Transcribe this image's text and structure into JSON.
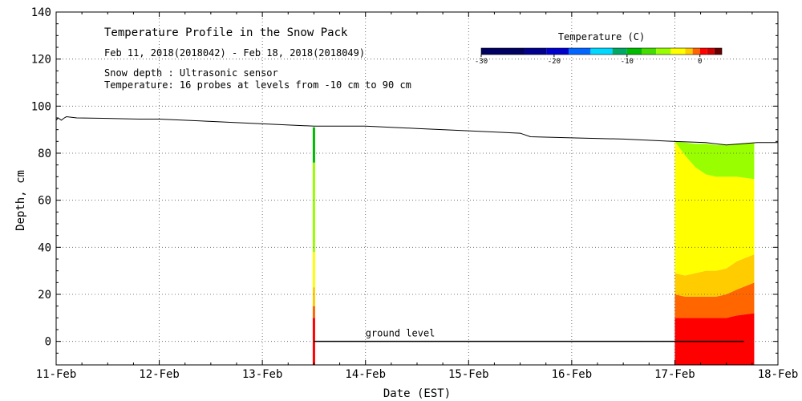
{
  "chart_data": {
    "type": "heatmap",
    "title": "Temperature Profile in the Snow Pack",
    "subtitle": "Feb 11, 2018(2018042) - Feb 18, 2018(2018049)",
    "notes": [
      "Snow depth : Ultrasonic sensor",
      "Temperature: 16 probes at levels from -10 cm to 90 cm"
    ],
    "xlabel": "Date (EST)",
    "ylabel": "Depth, cm",
    "xlim": [
      0,
      7
    ],
    "ylim": [
      -10,
      140
    ],
    "x_ticks": [
      {
        "x": 0,
        "label": "11-Feb"
      },
      {
        "x": 1,
        "label": "12-Feb"
      },
      {
        "x": 2,
        "label": "13-Feb"
      },
      {
        "x": 3,
        "label": "14-Feb"
      },
      {
        "x": 4,
        "label": "15-Feb"
      },
      {
        "x": 5,
        "label": "16-Feb"
      },
      {
        "x": 6,
        "label": "17-Feb"
      },
      {
        "x": 7,
        "label": "18-Feb"
      }
    ],
    "y_ticks": [
      0,
      20,
      40,
      60,
      80,
      100,
      120,
      140
    ],
    "grid": true,
    "colorbar": {
      "title": "Temperature (C)",
      "min": -30,
      "max": 3,
      "tick_values": [
        -30,
        -20,
        -10,
        0
      ],
      "tick_labels": [
        "-30",
        "-20",
        "-10",
        "0"
      ],
      "bands": [
        {
          "from": -30,
          "to": -24,
          "color": "#000060"
        },
        {
          "from": -24,
          "to": -21,
          "color": "#00008c"
        },
        {
          "from": -21,
          "to": -18,
          "color": "#0000cc"
        },
        {
          "from": -18,
          "to": -15,
          "color": "#0066ff"
        },
        {
          "from": -15,
          "to": -12,
          "color": "#00d8ff"
        },
        {
          "from": -12,
          "to": -10,
          "color": "#00aa66"
        },
        {
          "from": -10,
          "to": -8,
          "color": "#00bb00"
        },
        {
          "from": -8,
          "to": -6,
          "color": "#44dd00"
        },
        {
          "from": -6,
          "to": -4,
          "color": "#99ff00"
        },
        {
          "from": -4,
          "to": -2,
          "color": "#ffff00"
        },
        {
          "from": -2,
          "to": -1,
          "color": "#ffcc00"
        },
        {
          "from": -1,
          "to": 0,
          "color": "#ff6600"
        },
        {
          "from": 0,
          "to": 1,
          "color": "#ff0000"
        },
        {
          "from": 1,
          "to": 2,
          "color": "#cc0000"
        },
        {
          "from": 2,
          "to": 3,
          "color": "#660000"
        }
      ]
    },
    "snow_depth": {
      "name": "Snow depth",
      "x": [
        0,
        0.02,
        0.05,
        0.08,
        0.1,
        0.2,
        0.5,
        0.8,
        1.0,
        1.5,
        2.0,
        2.5,
        2.9,
        3.0,
        3.5,
        4.0,
        4.5,
        4.6,
        5.0,
        5.5,
        6.0,
        6.3,
        6.5,
        6.8,
        7.0
      ],
      "y": [
        94,
        95,
        94,
        95,
        95.5,
        95,
        94.8,
        94.5,
        94.5,
        93.5,
        92.5,
        91.5,
        91.5,
        91.5,
        90.5,
        89.5,
        88.5,
        87,
        86.5,
        86,
        85,
        84.5,
        83.5,
        84.5,
        84.5
      ]
    },
    "ground_level": {
      "label": "ground level",
      "y": 0,
      "x_start": 2.5,
      "x_end": 6.67
    },
    "probe_column": {
      "x": 2.5,
      "segments": [
        {
          "from": -10,
          "to": 10,
          "temp": 0.5
        },
        {
          "from": 10,
          "to": 15,
          "temp": -0.5
        },
        {
          "from": 15,
          "to": 23,
          "temp": -1.5
        },
        {
          "from": 23,
          "to": 38,
          "temp": -3
        },
        {
          "from": 38,
          "to": 76,
          "temp": -5
        },
        {
          "from": 76,
          "to": 91,
          "temp": -9
        }
      ]
    },
    "heatmap": {
      "x_start": 6.0,
      "x_end": 6.77,
      "x": [
        6.0,
        6.1,
        6.2,
        6.3,
        6.4,
        6.5,
        6.6,
        6.77
      ],
      "layers": [
        {
          "temp": 0.5,
          "top": [
            10,
            10,
            10,
            10,
            10,
            10,
            11,
            12
          ]
        },
        {
          "temp": -0.5,
          "top": [
            20,
            19,
            19,
            19,
            19,
            20,
            22,
            25
          ]
        },
        {
          "temp": -1.5,
          "top": [
            29,
            28,
            29,
            30,
            30,
            31,
            34,
            37
          ]
        },
        {
          "temp": -3,
          "top": [
            85,
            79,
            74,
            71,
            70,
            70,
            70,
            69
          ]
        },
        {
          "temp": -5,
          "top": [
            85,
            84.5,
            84,
            84,
            83.5,
            83.5,
            84,
            84.5
          ]
        }
      ]
    }
  }
}
